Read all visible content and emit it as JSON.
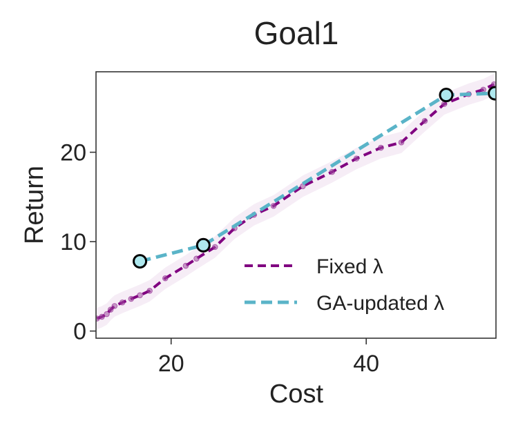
{
  "chart_data": {
    "type": "line",
    "title": "Goal1",
    "xlabel": "Cost",
    "ylabel": "Return",
    "xlim": [
      12.3,
      53.3
    ],
    "ylim": [
      -0.8,
      29.0
    ],
    "xticks": [
      20,
      40
    ],
    "yticks": [
      0,
      10,
      20
    ],
    "xtick_labels": [
      "20",
      "40"
    ],
    "ytick_labels": [
      "0",
      "10",
      "20"
    ],
    "grid": false,
    "legend_position": "lower-right",
    "series": [
      {
        "name": "Fixed λ",
        "color": "#800080",
        "style": "dashed",
        "points": [
          [
            12.4,
            1.4
          ],
          [
            12.9,
            1.6
          ],
          [
            13.4,
            1.9
          ],
          [
            13.8,
            2.4
          ],
          [
            14.2,
            2.8
          ],
          [
            15.0,
            3.2
          ],
          [
            15.9,
            3.6
          ],
          [
            16.8,
            4.0
          ],
          [
            17.8,
            4.5
          ],
          [
            19.4,
            5.9
          ],
          [
            21.5,
            7.3
          ],
          [
            22.6,
            8.1
          ],
          [
            24.5,
            9.4
          ],
          [
            26.5,
            11.5
          ],
          [
            28.5,
            13.0
          ],
          [
            30.5,
            14.0
          ],
          [
            33.5,
            16.2
          ],
          [
            36.5,
            17.8
          ],
          [
            39.0,
            19.3
          ],
          [
            41.5,
            20.5
          ],
          [
            43.6,
            21.1
          ],
          [
            46.0,
            23.5
          ],
          [
            48.0,
            25.4
          ],
          [
            50.5,
            26.5
          ],
          [
            52.0,
            27.0
          ],
          [
            53.1,
            27.6
          ]
        ],
        "band": 1.2
      },
      {
        "name": "GA-updated λ",
        "color": "#5ab4c8",
        "style": "dashed",
        "points": [
          [
            16.8,
            7.8
          ],
          [
            23.3,
            9.6
          ],
          [
            48.2,
            26.4
          ],
          [
            53.2,
            26.6
          ]
        ]
      }
    ]
  }
}
